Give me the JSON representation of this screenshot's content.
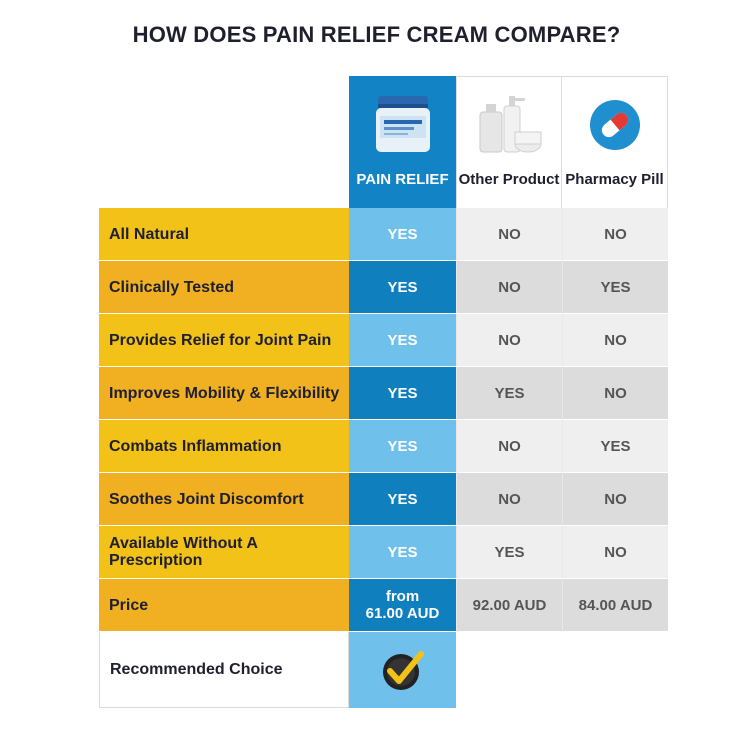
{
  "title": "HOW DOES PAIN RELIEF CREAM COMPARE?",
  "columns": [
    {
      "label": "PAIN RELIEF",
      "icon": "cream-jar-icon"
    },
    {
      "label": "Other Product",
      "icon": "cosmetic-bottles-icon"
    },
    {
      "label": "Pharmacy Pill",
      "icon": "pill-icon"
    }
  ],
  "rows": [
    {
      "feature": "All Natural",
      "values": [
        "YES",
        "NO",
        "NO"
      ]
    },
    {
      "feature": "Clinically Tested",
      "values": [
        "YES",
        "NO",
        "YES"
      ]
    },
    {
      "feature": "Provides Relief for Joint Pain",
      "values": [
        "YES",
        "NO",
        "NO"
      ]
    },
    {
      "feature": "Improves Mobility & Flexibility",
      "values": [
        "YES",
        "YES",
        "NO"
      ]
    },
    {
      "feature": "Combats Inflammation",
      "values": [
        "YES",
        "NO",
        "YES"
      ]
    },
    {
      "feature": "Soothes Joint Discomfort",
      "values": [
        "YES",
        "NO",
        "NO"
      ]
    },
    {
      "feature": "Available Without A Prescription",
      "values": [
        "YES",
        "YES",
        "NO"
      ]
    },
    {
      "feature": "Price",
      "values": [
        "from\n61.00 AUD",
        "92.00 AUD",
        "84.00 AUD"
      ]
    }
  ],
  "recommended": {
    "label": "Recommended Choice",
    "icon": "checkmark-badge-icon"
  },
  "colors": {
    "yellow": "#f2c219",
    "orange": "#f0b022",
    "blue": "#1284c6",
    "light_blue": "#6fc1ec"
  }
}
